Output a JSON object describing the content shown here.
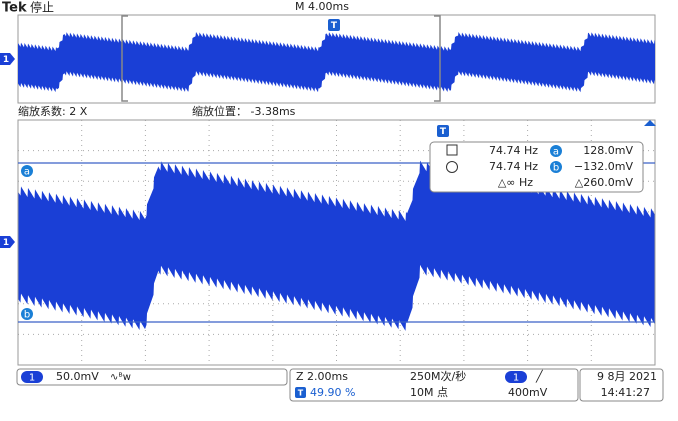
{
  "header": {
    "brand": "Tek",
    "status": "停止",
    "timebase": "M 4.00ms"
  },
  "zoom": {
    "factor": "缩放系数: 2 X",
    "position": "缩放位置： -3.38ms"
  },
  "markers": {
    "channel": "1",
    "trigger": "T",
    "cursor_a": "a",
    "cursor_b": "b"
  },
  "cursor_readout": {
    "row_a": {
      "frequency": "74.74 Hz",
      "cursor": "a",
      "voltage": "128.0mV"
    },
    "row_b": {
      "frequency": "74.74 Hz",
      "cursor": "b",
      "voltage": "−132.0mV"
    },
    "delta": {
      "frequency": "△∞ Hz",
      "voltage": "△260.0mV"
    }
  },
  "status_bar": {
    "channel": "1",
    "scale": "50.0mV",
    "bandwidth": "∿ᴮw",
    "zoom_scale": "Z 2.00ms",
    "trigger_icon": "T",
    "trigger_position": "49.90 %",
    "sample_rate": "250M次/秒",
    "record_length": "10M 点",
    "trigger_source": "1",
    "trigger_slope": "╱",
    "trigger_level": "400mV",
    "date": "9 8月 2021",
    "time": "14:41:27"
  }
}
